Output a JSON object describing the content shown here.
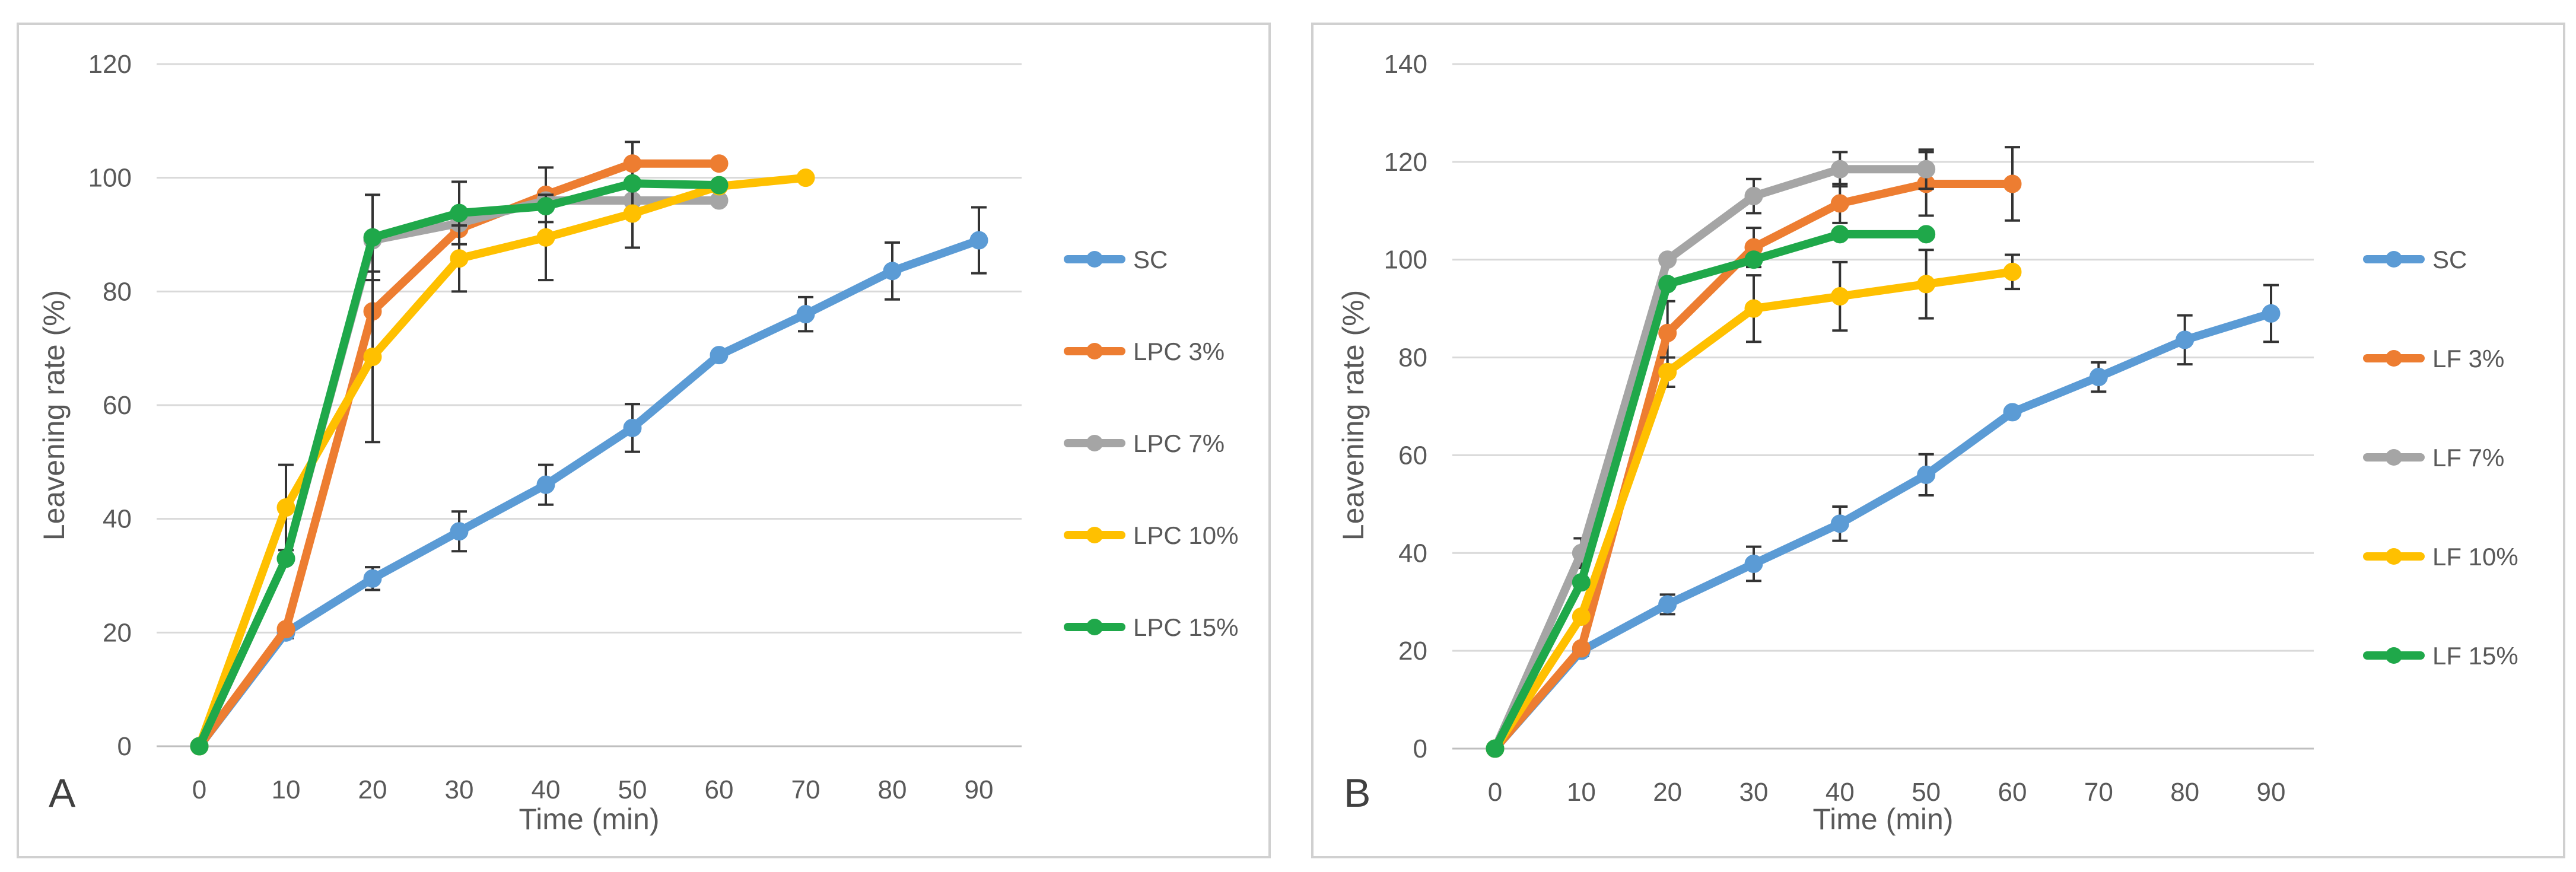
{
  "chart_data": [
    {
      "type": "line",
      "panel_label": "A",
      "title": "",
      "xlabel": "Time (min)",
      "ylabel": "Leavening rate (%)",
      "x": [
        0,
        10,
        20,
        30,
        40,
        50,
        60,
        70,
        80,
        90
      ],
      "xlim": [
        0,
        90
      ],
      "ylim": [
        0,
        120
      ],
      "yticks": [
        0,
        20,
        40,
        60,
        80,
        100,
        120
      ],
      "grid": true,
      "legend_position": "right",
      "series": [
        {
          "name": "SC",
          "color": "#5b9bd5",
          "values": [
            0,
            20,
            29.5,
            37.8,
            46,
            56,
            68.8,
            76,
            83.6,
            89
          ],
          "errors": [
            0,
            1,
            2,
            3.5,
            3.5,
            4.2,
            0,
            3,
            5,
            5.8
          ]
        },
        {
          "name": "LPC 3%",
          "color": "#ed7d31",
          "values": [
            0,
            20.6,
            76.5,
            91,
            97,
            102.5,
            102.5,
            null,
            null,
            null
          ],
          "errors": [
            0,
            0,
            0,
            0,
            4.8,
            3.8,
            0,
            null,
            null,
            null
          ]
        },
        {
          "name": "LPC 7%",
          "color": "#a5a5a5",
          "values": [
            0,
            33,
            89,
            92,
            96,
            96,
            96,
            null,
            null,
            null
          ],
          "errors": [
            0,
            0,
            0,
            0,
            0,
            0,
            0,
            null,
            null,
            null
          ]
        },
        {
          "name": "LPC 10%",
          "color": "#ffc000",
          "values": [
            0,
            42,
            68.5,
            85.8,
            89.5,
            93.7,
            98.5,
            100,
            null,
            null
          ],
          "errors": [
            0,
            7.5,
            15,
            5.8,
            7.5,
            6,
            0,
            0,
            null,
            null
          ]
        },
        {
          "name": "LPC 15%",
          "color": "#1fa84a",
          "values": [
            0,
            33,
            89.5,
            93.8,
            95,
            99,
            98.7,
            null,
            null,
            null
          ],
          "errors": [
            0,
            0,
            7.5,
            5.5,
            0,
            0,
            0,
            null,
            null,
            null
          ]
        }
      ]
    },
    {
      "type": "line",
      "panel_label": "B",
      "title": "",
      "xlabel": "Time (min)",
      "ylabel": "Leavening rate (%)",
      "x": [
        0,
        10,
        20,
        30,
        40,
        50,
        60,
        70,
        80,
        90
      ],
      "xlim": [
        0,
        90
      ],
      "ylim": [
        0,
        140
      ],
      "yticks": [
        0,
        20,
        40,
        60,
        80,
        100,
        120,
        140
      ],
      "grid": true,
      "legend_position": "right",
      "series": [
        {
          "name": "SC",
          "color": "#5b9bd5",
          "values": [
            0,
            20,
            29.5,
            37.8,
            46,
            56,
            68.8,
            76,
            83.6,
            89
          ],
          "errors": [
            0,
            1,
            2,
            3.5,
            3.5,
            4.2,
            0,
            3,
            5,
            5.8
          ]
        },
        {
          "name": "LF 3%",
          "color": "#ed7d31",
          "values": [
            0,
            20.5,
            85,
            102.5,
            111.5,
            115.5,
            115.5,
            null,
            null,
            null
          ],
          "errors": [
            0,
            0,
            6.5,
            4,
            4,
            6.5,
            7.5,
            null,
            null,
            null
          ]
        },
        {
          "name": "LF 7%",
          "color": "#a5a5a5",
          "values": [
            0,
            40,
            100,
            113,
            118.5,
            118.5,
            null,
            null,
            null,
            null
          ],
          "errors": [
            0,
            3,
            0,
            3.5,
            3.5,
            4,
            null,
            null,
            null,
            null
          ]
        },
        {
          "name": "LF 10%",
          "color": "#ffc000",
          "values": [
            0,
            27,
            77,
            90,
            92.5,
            95,
            97.5,
            null,
            null,
            null
          ],
          "errors": [
            0,
            0,
            3,
            6.8,
            7,
            7,
            3.5,
            null,
            null,
            null
          ]
        },
        {
          "name": "LF 15%",
          "color": "#1fa84a",
          "values": [
            0,
            34,
            95,
            100,
            105.2,
            105.2,
            null,
            null,
            null,
            null
          ],
          "errors": [
            0,
            0,
            0,
            0,
            0,
            0,
            null,
            null,
            null,
            null
          ]
        }
      ]
    }
  ]
}
